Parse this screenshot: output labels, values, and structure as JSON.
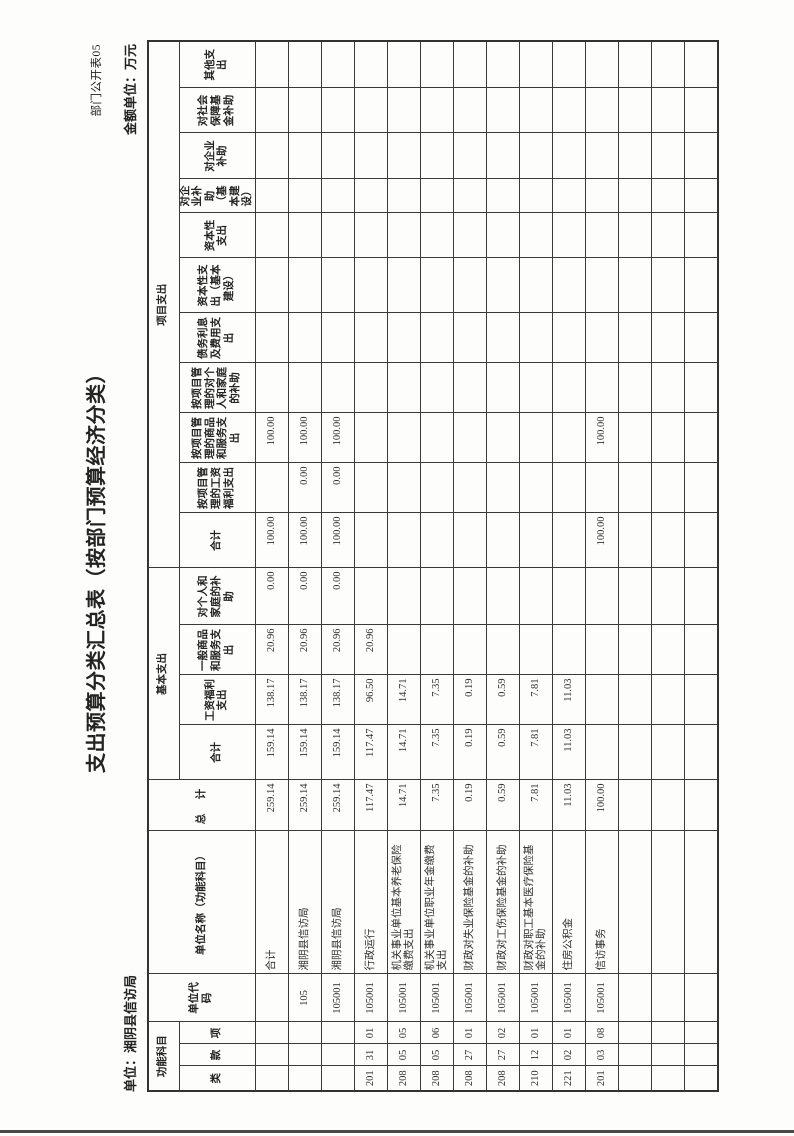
{
  "page": {
    "doc_number": "部门公开表05",
    "title": "支出预算分类汇总表（按部门预算经济分类）",
    "unit_label": "单位：湘阴县信访局",
    "amount_unit_label": "金额单位：万元"
  },
  "table": {
    "headers": {
      "func_group": "功能科目",
      "func_cols": [
        "类",
        "款",
        "项"
      ],
      "unit_code": "单位代码",
      "unit_name": "单位名称（功能科目）",
      "total": "总　计",
      "basic_group": "基本支出",
      "basic_cols": [
        "合计",
        "工资福利支出",
        "一般商品和服务支出",
        "对个人和家庭的补助"
      ],
      "project_group": "项目支出",
      "project_cols": [
        "合计",
        "按项目管理的工资福利支出",
        "按项目管理的商品和服务支出",
        "按项目管理的对个人和家庭的补助",
        "债务利息及费用支出",
        "资本性支出（基本建设）",
        "资本性支出",
        "对企业补助（基本建设）",
        "对企业补助",
        "对社会保障基金补助",
        "其他支出"
      ]
    },
    "rows": [
      [
        "",
        "",
        "",
        "",
        "合计",
        "259.14",
        "159.14",
        "138.17",
        "20.96",
        "0.00",
        "100.00",
        "",
        "100.00",
        "",
        "",
        "",
        "",
        "",
        "",
        "",
        ""
      ],
      [
        "",
        "",
        "",
        "105",
        "湘阴县信访局",
        "259.14",
        "159.14",
        "138.17",
        "20.96",
        "0.00",
        "100.00",
        "0.00",
        "100.00",
        "",
        "",
        "",
        "",
        "",
        "",
        "",
        ""
      ],
      [
        "",
        "",
        "",
        "105001",
        "湘阴县信访局",
        "259.14",
        "159.14",
        "138.17",
        "20.96",
        "0.00",
        "100.00",
        "0.00",
        "100.00",
        "",
        "",
        "",
        "",
        "",
        "",
        "",
        ""
      ],
      [
        "201",
        "31",
        "01",
        "105001",
        "行政运行",
        "117.47",
        "117.47",
        "96.50",
        "20.96",
        "",
        "",
        "",
        "",
        "",
        "",
        "",
        "",
        "",
        "",
        "",
        ""
      ],
      [
        "208",
        "05",
        "05",
        "105001",
        "机关事业单位基本养老保险缴费支出",
        "14.71",
        "14.71",
        "14.71",
        "",
        "",
        "",
        "",
        "",
        "",
        "",
        "",
        "",
        "",
        "",
        "",
        ""
      ],
      [
        "208",
        "05",
        "06",
        "105001",
        "机关事业单位职业年金缴费支出",
        "7.35",
        "7.35",
        "7.35",
        "",
        "",
        "",
        "",
        "",
        "",
        "",
        "",
        "",
        "",
        "",
        "",
        ""
      ],
      [
        "208",
        "27",
        "01",
        "105001",
        "财政对失业保险基金的补助",
        "0.19",
        "0.19",
        "0.19",
        "",
        "",
        "",
        "",
        "",
        "",
        "",
        "",
        "",
        "",
        "",
        "",
        ""
      ],
      [
        "208",
        "27",
        "02",
        "105001",
        "财政对工伤保险基金的补助",
        "0.59",
        "0.59",
        "0.59",
        "",
        "",
        "",
        "",
        "",
        "",
        "",
        "",
        "",
        "",
        "",
        "",
        ""
      ],
      [
        "210",
        "12",
        "01",
        "105001",
        "财政对职工基本医疗保险基金的补助",
        "7.81",
        "7.81",
        "7.81",
        "",
        "",
        "",
        "",
        "",
        "",
        "",
        "",
        "",
        "",
        "",
        "",
        ""
      ],
      [
        "221",
        "02",
        "01",
        "105001",
        "住房公积金",
        "11.03",
        "11.03",
        "11.03",
        "",
        "",
        "",
        "",
        "",
        "",
        "",
        "",
        "",
        "",
        "",
        "",
        ""
      ],
      [
        "201",
        "03",
        "08",
        "105001",
        "信访事务",
        "100.00",
        "",
        "",
        "",
        "",
        "100.00",
        "",
        "100.00",
        "",
        "",
        "",
        "",
        "",
        "",
        "",
        ""
      ],
      [
        "",
        "",
        "",
        "",
        "",
        "",
        "",
        "",
        "",
        "",
        "",
        "",
        "",
        "",
        "",
        "",
        "",
        "",
        "",
        "",
        ""
      ],
      [
        "",
        "",
        "",
        "",
        "",
        "",
        "",
        "",
        "",
        "",
        "",
        "",
        "",
        "",
        "",
        "",
        "",
        "",
        "",
        "",
        ""
      ],
      [
        "",
        "",
        "",
        "",
        "",
        "",
        "",
        "",
        "",
        "",
        "",
        "",
        "",
        "",
        "",
        "",
        "",
        "",
        "",
        "",
        ""
      ]
    ]
  }
}
